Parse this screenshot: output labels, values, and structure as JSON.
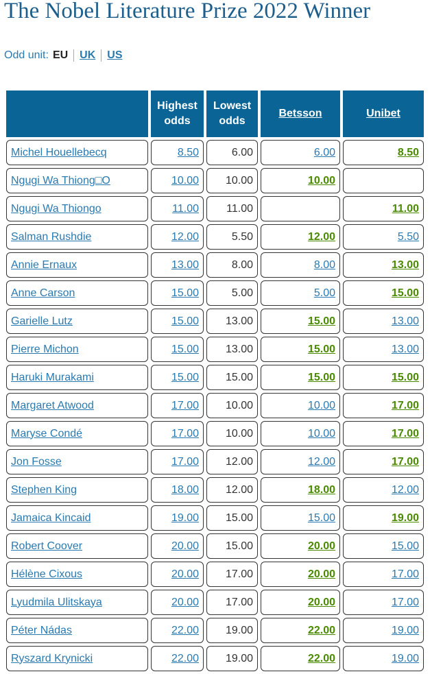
{
  "header": {
    "title": "The Nobel Literature Prize 2022 Winner",
    "odd_unit": {
      "label": "Odd unit:",
      "options": [
        "EU",
        "UK",
        "US"
      ]
    }
  },
  "table": {
    "columns": [
      "Highest odds",
      "Lowest odds",
      "Betsson",
      "Unibet"
    ],
    "rows": [
      [
        "Michel Houellebecq",
        "8.50",
        "6.00",
        "6.00",
        "8.50"
      ],
      [
        "Ngugi Wa Thiong□O",
        "10.00",
        "10.00",
        "10.00",
        null
      ],
      [
        "Ngugi Wa Thiongo",
        "11.00",
        "11.00",
        null,
        "11.00"
      ],
      [
        "Salman Rushdie",
        "12.00",
        "5.50",
        "12.00",
        "5.50"
      ],
      [
        "Annie Ernaux",
        "13.00",
        "8.00",
        "8.00",
        "13.00"
      ],
      [
        "Anne Carson",
        "15.00",
        "5.00",
        "5.00",
        "15.00"
      ],
      [
        "Garielle Lutz",
        "15.00",
        "13.00",
        "15.00",
        "13.00"
      ],
      [
        "Pierre Michon",
        "15.00",
        "13.00",
        "15.00",
        "13.00"
      ],
      [
        "Haruki Murakami",
        "15.00",
        "15.00",
        "15.00",
        "15.00"
      ],
      [
        "Margaret Atwood",
        "17.00",
        "10.00",
        "10.00",
        "17.00"
      ],
      [
        "Maryse Condé",
        "17.00",
        "10.00",
        "10.00",
        "17.00"
      ],
      [
        "Jon Fosse",
        "17.00",
        "12.00",
        "12.00",
        "17.00"
      ],
      [
        "Stephen King",
        "18.00",
        "12.00",
        "18.00",
        "12.00"
      ],
      [
        "Jamaica Kincaid",
        "19.00",
        "15.00",
        "15.00",
        "19.00"
      ],
      [
        "Robert Coover",
        "20.00",
        "15.00",
        "20.00",
        "15.00"
      ],
      [
        "Hélène Cixous",
        "20.00",
        "17.00",
        "20.00",
        "17.00"
      ],
      [
        "Lyudmila Ulitskaya",
        "20.00",
        "17.00",
        "20.00",
        "17.00"
      ],
      [
        "Péter Nádas",
        "22.00",
        "19.00",
        "22.00",
        "19.00"
      ],
      [
        "Ryszard Krynicki",
        "22.00",
        "19.00",
        "22.00",
        "19.00"
      ]
    ]
  }
}
